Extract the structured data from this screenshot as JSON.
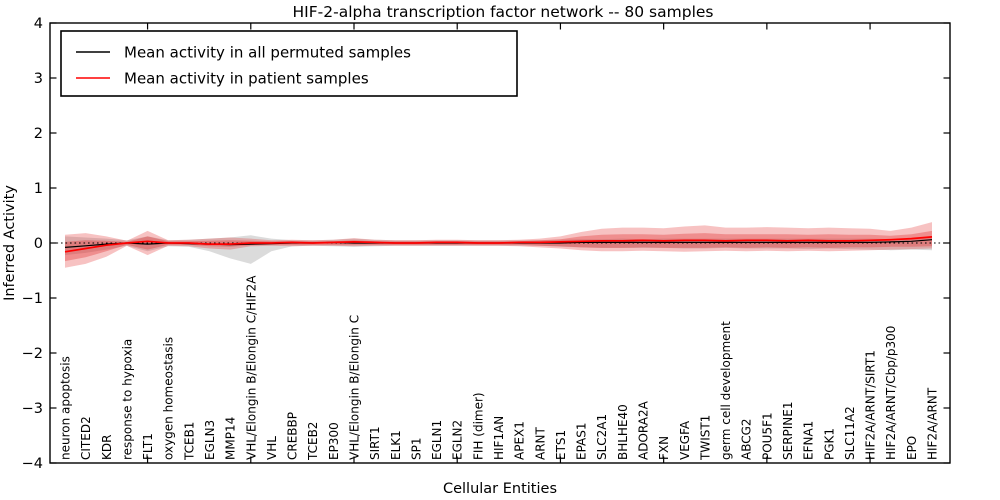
{
  "figure": {
    "title": "HIF-2-alpha transcription factor network -- 80 samples",
    "xlabel": "Cellular Entities",
    "ylabel": "Inferred Activity"
  },
  "legend": {
    "items": [
      {
        "label": "Mean activity in all permuted samples",
        "color": "#000000"
      },
      {
        "label": "Mean activity in patient samples",
        "color": "#ff0000"
      }
    ]
  },
  "axes": {
    "ylim": [
      -4,
      4
    ],
    "ytick_values": [
      4,
      3,
      2,
      1,
      0,
      -1,
      -2,
      -3,
      -4
    ],
    "ytick_labels": [
      "4",
      "3",
      "2",
      "1",
      "0",
      "−1",
      "−2",
      "−3",
      "−4"
    ],
    "xtick_index_positions": [
      4,
      9,
      14,
      19,
      24,
      29,
      34,
      39
    ],
    "grid": false
  },
  "chart_data": {
    "type": "line",
    "title": "HIF-2-alpha transcription factor network -- 80 samples",
    "xlabel": "Cellular Entities",
    "ylabel": "Inferred Activity",
    "ylim": [
      -4,
      4
    ],
    "legend_position": "upper left",
    "zero_line": 0,
    "categories": [
      "neuron apoptosis",
      "CITED2",
      "KDR",
      "response to hypoxia",
      "FLT1",
      "oxygen homeostasis",
      "TCEB1",
      "EGLN3",
      "MMP14",
      "VHL/Elongin B/Elongin C/HIF2A",
      "VHL",
      "CREBBP",
      "TCEB2",
      "EP300",
      "VHL/Elongin B/Elongin C",
      "SIRT1",
      "ELK1",
      "SP1",
      "EGLN1",
      "EGLN2",
      "FIH (dimer)",
      "HIF1AN",
      "APEX1",
      "ARNT",
      "ETS1",
      "EPAS1",
      "SLC2A1",
      "BHLHE40",
      "ADORA2A",
      "FXN",
      "VEGFA",
      "TWIST1",
      "germ cell development",
      "ABCG2",
      "POU5F1",
      "SERPINE1",
      "EFNA1",
      "PGK1",
      "SLC11A2",
      "HIF2A/ARNT/SIRT1",
      "HIF2A/ARNT/Cbp/p300",
      "EPO",
      "HIF2A/ARNT"
    ],
    "series": [
      {
        "name": "Mean activity in all permuted samples",
        "color": "#000000",
        "values": [
          -0.08,
          -0.05,
          -0.02,
          0.0,
          -0.02,
          0.0,
          -0.01,
          -0.02,
          -0.03,
          -0.02,
          -0.01,
          0.0,
          0.0,
          0.01,
          0.0,
          0.0,
          0.0,
          0.0,
          0.0,
          0.0,
          0.0,
          0.0,
          0.0,
          0.0,
          0.0,
          0.01,
          0.01,
          0.01,
          0.01,
          0.01,
          0.01,
          0.01,
          0.01,
          0.01,
          0.01,
          0.01,
          0.01,
          0.01,
          0.01,
          0.01,
          0.02,
          0.03,
          0.06
        ]
      },
      {
        "name": "Mean activity in patient samples",
        "color": "#ff0000",
        "values": [
          -0.16,
          -0.1,
          -0.04,
          0.0,
          0.03,
          0.0,
          0.0,
          -0.02,
          -0.02,
          0.0,
          0.0,
          0.01,
          0.0,
          0.01,
          0.02,
          0.01,
          0.0,
          0.0,
          0.01,
          0.01,
          0.0,
          0.0,
          0.01,
          0.01,
          0.02,
          0.03,
          0.04,
          0.04,
          0.05,
          0.04,
          0.05,
          0.05,
          0.04,
          0.05,
          0.05,
          0.04,
          0.05,
          0.04,
          0.04,
          0.05,
          0.06,
          0.08,
          0.11
        ]
      }
    ],
    "bands": [
      {
        "name": "permuted-samples-range",
        "color": "rgba(110,110,110,0.25)",
        "hi": [
          0.12,
          0.1,
          0.08,
          0.05,
          0.12,
          0.05,
          0.06,
          0.08,
          0.1,
          0.14,
          0.08,
          0.05,
          0.05,
          0.06,
          0.08,
          0.06,
          0.05,
          0.05,
          0.05,
          0.05,
          0.05,
          0.05,
          0.05,
          0.05,
          0.06,
          0.07,
          0.07,
          0.08,
          0.07,
          0.08,
          0.08,
          0.08,
          0.08,
          0.08,
          0.08,
          0.08,
          0.08,
          0.08,
          0.08,
          0.08,
          0.07,
          0.08,
          0.09
        ],
        "lo": [
          -0.22,
          -0.18,
          -0.12,
          -0.05,
          -0.15,
          -0.06,
          -0.07,
          -0.15,
          -0.28,
          -0.38,
          -0.15,
          -0.06,
          -0.05,
          -0.06,
          -0.07,
          -0.06,
          -0.05,
          -0.05,
          -0.05,
          -0.05,
          -0.05,
          -0.05,
          -0.05,
          -0.05,
          -0.07,
          -0.08,
          -0.09,
          -0.09,
          -0.09,
          -0.09,
          -0.1,
          -0.1,
          -0.09,
          -0.1,
          -0.1,
          -0.1,
          -0.11,
          -0.1,
          -0.11,
          -0.12,
          -0.13,
          -0.12,
          -0.13
        ]
      },
      {
        "name": "patient-samples-outer-range",
        "color": "rgba(225,35,35,0.28)",
        "hi": [
          0.15,
          0.18,
          0.12,
          0.04,
          0.22,
          0.05,
          0.06,
          0.08,
          0.1,
          0.08,
          0.05,
          0.06,
          0.05,
          0.06,
          0.09,
          0.06,
          0.05,
          0.05,
          0.06,
          0.06,
          0.05,
          0.05,
          0.06,
          0.08,
          0.12,
          0.2,
          0.26,
          0.28,
          0.28,
          0.27,
          0.3,
          0.32,
          0.28,
          0.28,
          0.29,
          0.28,
          0.27,
          0.28,
          0.27,
          0.26,
          0.22,
          0.28,
          0.38
        ],
        "lo": [
          -0.45,
          -0.38,
          -0.25,
          -0.05,
          -0.22,
          -0.05,
          -0.06,
          -0.1,
          -0.12,
          -0.06,
          -0.05,
          -0.06,
          -0.05,
          -0.05,
          -0.06,
          -0.05,
          -0.05,
          -0.05,
          -0.05,
          -0.05,
          -0.05,
          -0.05,
          -0.06,
          -0.08,
          -0.1,
          -0.13,
          -0.15,
          -0.15,
          -0.14,
          -0.15,
          -0.16,
          -0.15,
          -0.14,
          -0.15,
          -0.14,
          -0.15,
          -0.14,
          -0.15,
          -0.14,
          -0.13,
          -0.12,
          -0.11,
          -0.1
        ]
      },
      {
        "name": "patient-samples-inner-range",
        "color": "rgba(225,35,35,0.32)",
        "hi": [
          0.02,
          0.05,
          0.04,
          0.02,
          0.12,
          0.03,
          0.03,
          0.04,
          0.05,
          0.04,
          0.03,
          0.03,
          0.03,
          0.03,
          0.05,
          0.03,
          0.03,
          0.03,
          0.03,
          0.03,
          0.03,
          0.03,
          0.03,
          0.05,
          0.07,
          0.12,
          0.15,
          0.16,
          0.16,
          0.15,
          0.17,
          0.18,
          0.16,
          0.16,
          0.16,
          0.16,
          0.15,
          0.16,
          0.15,
          0.15,
          0.13,
          0.16,
          0.22
        ],
        "lo": [
          -0.33,
          -0.26,
          -0.15,
          -0.03,
          -0.12,
          -0.03,
          -0.03,
          -0.06,
          -0.07,
          -0.04,
          -0.03,
          -0.03,
          -0.03,
          -0.03,
          -0.03,
          -0.03,
          -0.03,
          -0.03,
          -0.03,
          -0.03,
          -0.03,
          -0.03,
          -0.03,
          -0.05,
          -0.06,
          -0.08,
          -0.09,
          -0.09,
          -0.08,
          -0.09,
          -0.09,
          -0.09,
          -0.08,
          -0.09,
          -0.08,
          -0.09,
          -0.08,
          -0.09,
          -0.08,
          -0.08,
          -0.07,
          -0.07,
          -0.06
        ]
      }
    ]
  }
}
